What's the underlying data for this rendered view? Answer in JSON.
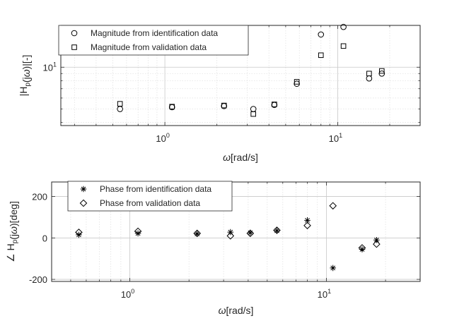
{
  "chart_data": [
    {
      "type": "scatter",
      "xscale": "log",
      "yscale": "log",
      "xlim": [
        0.25,
        30
      ],
      "ylim": [
        3.8,
        20
      ],
      "grid": true,
      "legend_location": "top-left",
      "xlabel": "ω[rad/s]",
      "ylabel": "|Hp(jω)|[-]",
      "xticks": [
        {
          "base": "10",
          "exp": "0"
        },
        {
          "base": "10",
          "exp": "1"
        }
      ],
      "yticks": [
        {
          "base": "10",
          "exp": "1"
        }
      ],
      "series": [
        {
          "name": "Magnitude from identification data",
          "marker": "circle",
          "x": [
            0.55,
            1.1,
            2.2,
            3.25,
            4.3,
            5.8,
            8.0,
            10.8,
            15.2,
            18.0
          ],
          "y": [
            5.0,
            5.15,
            5.25,
            5.0,
            5.35,
            7.6,
            17.2,
            19.5,
            8.3,
            9.0
          ]
        },
        {
          "name": "Magnitude from validation data",
          "marker": "square",
          "x": [
            0.55,
            1.1,
            2.2,
            3.25,
            4.3,
            5.8,
            8.0,
            10.8,
            15.2,
            18.0
          ],
          "y": [
            5.45,
            5.2,
            5.3,
            4.6,
            5.4,
            7.85,
            12.2,
            14.2,
            9.0,
            9.4
          ]
        }
      ]
    },
    {
      "type": "scatter",
      "xscale": "log",
      "xlim": [
        0.4,
        30
      ],
      "ylim": [
        -210,
        270
      ],
      "grid": true,
      "legend_location": "top-left",
      "xlabel": "ω[rad/s]",
      "ylabel": "∠ Hp(jω)[deg]",
      "xticks": [
        {
          "base": "10",
          "exp": "0"
        },
        {
          "base": "10",
          "exp": "1"
        }
      ],
      "yticks": [
        "200",
        "0",
        "-200"
      ],
      "series": [
        {
          "name": "Phase from identification data",
          "marker": "asterisk",
          "x": [
            0.55,
            1.1,
            2.2,
            3.25,
            4.1,
            5.6,
            8.0,
            10.8,
            15.2,
            18.0
          ],
          "y": [
            15,
            22,
            20,
            28,
            25,
            35,
            85,
            -145,
            -55,
            -10
          ]
        },
        {
          "name": "Phase from validation data",
          "marker": "diamond",
          "x": [
            0.55,
            1.1,
            2.2,
            3.25,
            4.1,
            5.6,
            8.0,
            10.8,
            15.2,
            18.0
          ],
          "y": [
            27,
            32,
            22,
            10,
            22,
            37,
            60,
            155,
            -48,
            -30
          ]
        }
      ]
    }
  ]
}
